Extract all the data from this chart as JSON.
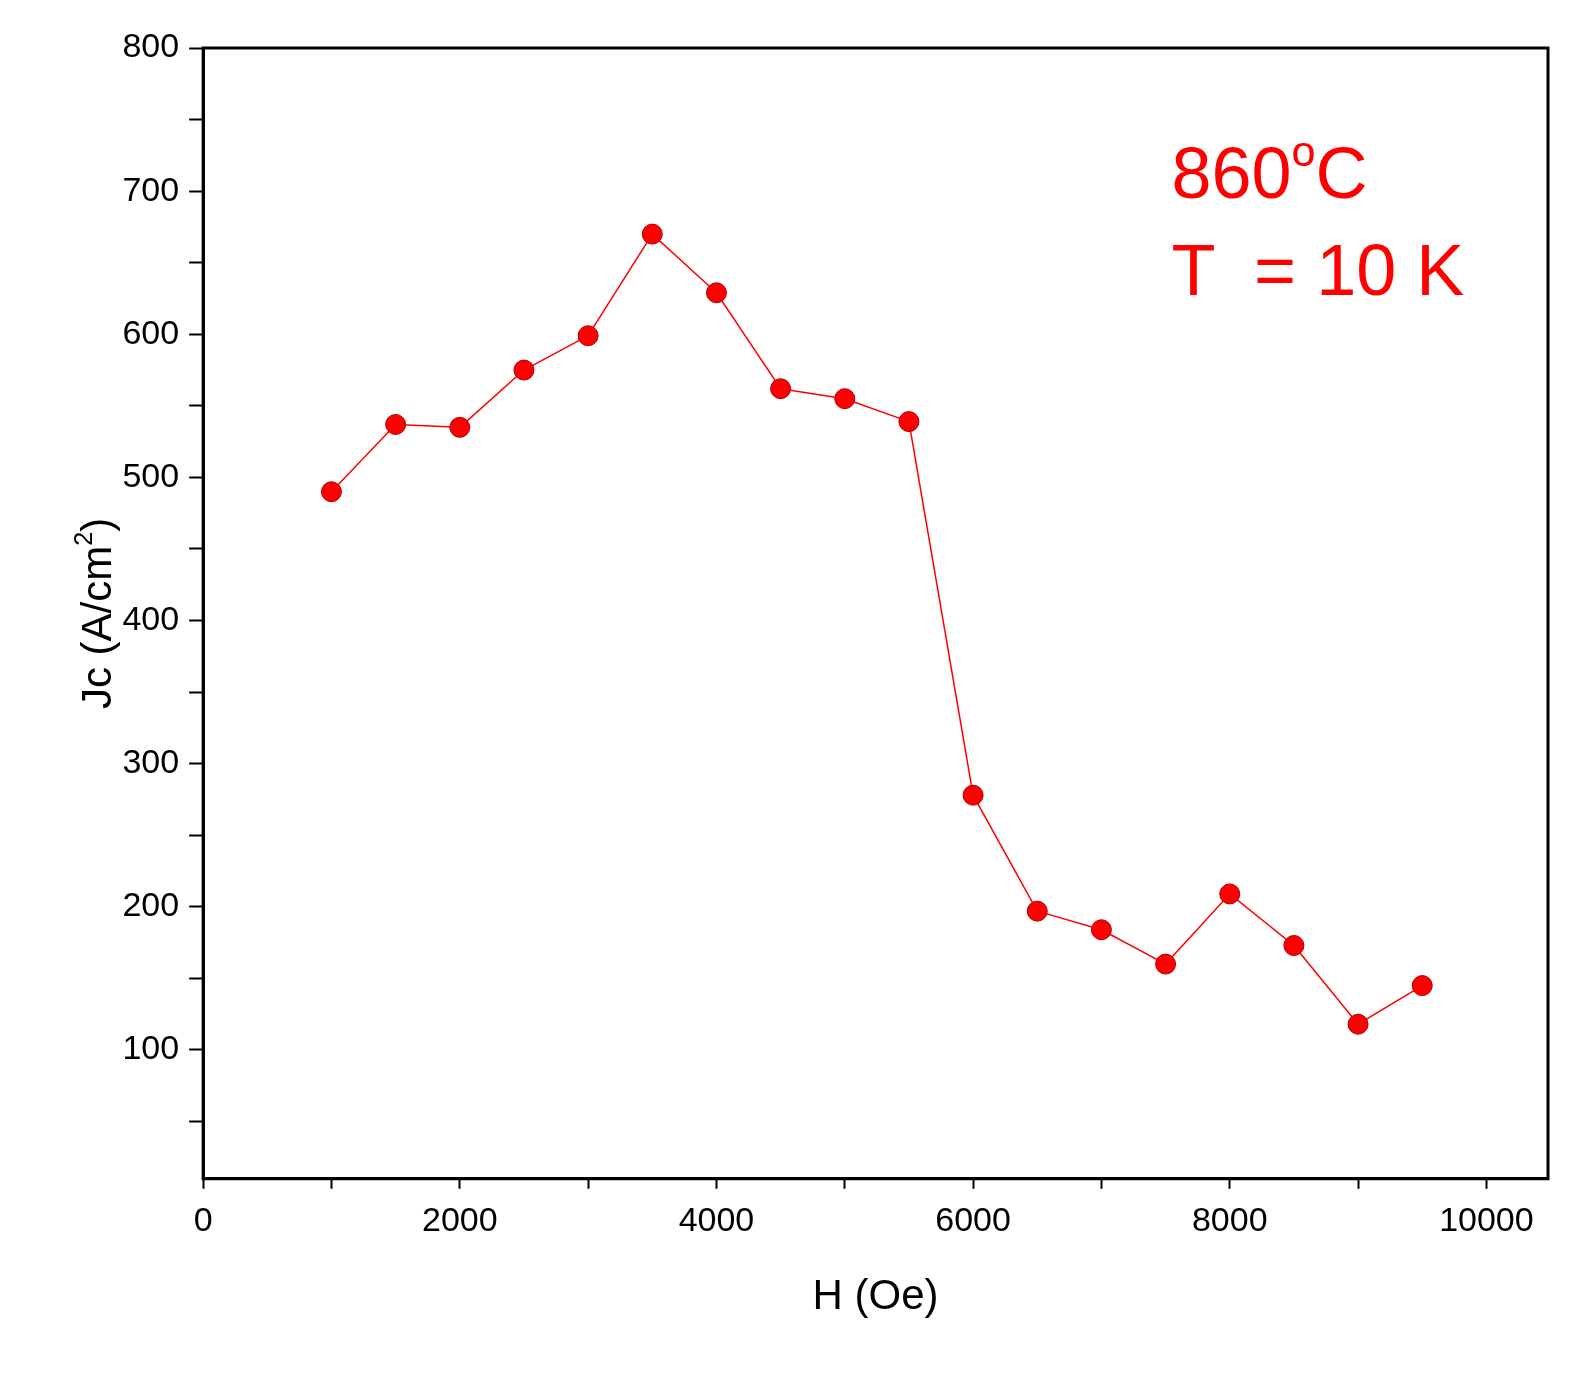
{
  "chart_data": {
    "type": "line",
    "xlabel": "H (Oe)",
    "ylabel": "Jc (A/cm$^{2}$)",
    "x": [
      1000,
      1500,
      2000,
      2500,
      3000,
      3500,
      4000,
      4500,
      5000,
      5500,
      6000,
      6500,
      7000,
      7500,
      8000,
      8500,
      9000,
      9500
    ],
    "series": [
      {
        "color": "#ff0000",
        "values": [
          490,
          537,
          535,
          575,
          599,
          670,
          629,
          562,
          555,
          539,
          278,
          197,
          184,
          160,
          209,
          173,
          118,
          145
        ]
      }
    ],
    "xlim": [
      0,
      10480
    ],
    "ylim": [
      10,
      800
    ],
    "xticks": [
      0,
      {
        "value": 1000,
        "label": null
      },
      2000,
      {
        "value": 3000,
        "label": null
      },
      4000,
      {
        "value": 5000,
        "label": null
      },
      6000,
      {
        "value": 7000,
        "label": null
      },
      8000,
      {
        "value": 9000,
        "label": null
      },
      10000
    ],
    "yticks": [
      {
        "value": 50,
        "label": null
      },
      100,
      {
        "value": 150,
        "label": null
      },
      200,
      {
        "value": 250,
        "label": null
      },
      300,
      {
        "value": 350,
        "label": null
      },
      400,
      {
        "value": 450,
        "label": null
      },
      500,
      {
        "value": 550,
        "label": null
      },
      600,
      {
        "value": 650,
        "label": null
      },
      700,
      {
        "value": 750,
        "label": null
      },
      800
    ],
    "annotations": [
      "860$^{o}$C",
      "T  = 10 K"
    ],
    "marker": "circle",
    "line_style": "solid",
    "grid": false,
    "legend": false
  }
}
